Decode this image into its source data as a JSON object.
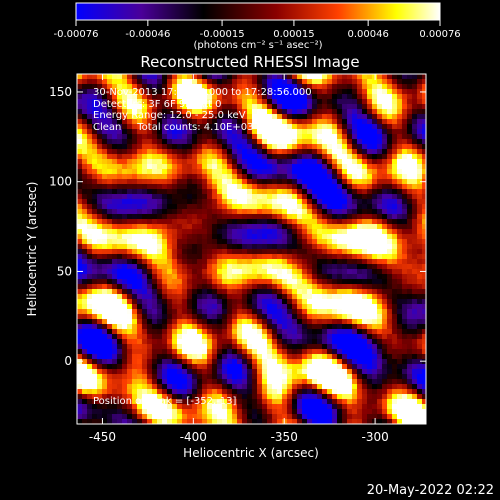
{
  "chart_data": {
    "type": "heatmap",
    "title": "Reconstructed RHESSI Image",
    "xlabel": "Heliocentric X (arcsec)",
    "ylabel": "Heliocentric Y (arcsec)",
    "xlim": [
      -464,
      -272
    ],
    "ylim": [
      -35,
      160
    ],
    "x_ticks": [
      "-450",
      "-400",
      "-350",
      "-300"
    ],
    "x_tick_values": [
      -450,
      -400,
      -350,
      -300
    ],
    "y_ticks": [
      "0",
      "50",
      "100",
      "150"
    ],
    "y_tick_values": [
      0,
      50,
      100,
      150
    ],
    "colorbar": {
      "min": -0.00076,
      "max": 0.00076,
      "tick_labels": [
        "-0.00076",
        "-0.00046",
        "-0.00015",
        "0.00015",
        "0.00046",
        "0.00076"
      ],
      "tick_values": [
        -0.00076,
        -0.00046,
        -0.00015,
        0.00015,
        0.00046,
        0.00076
      ],
      "units": "(photons cm⁻² s⁻¹ asec⁻²)",
      "colormap": [
        "#0000ff",
        "#4a0099",
        "#000000",
        "#8a0000",
        "#ff4000",
        "#ffff00",
        "#ffffff"
      ]
    },
    "annotations": {
      "time_range": "30-Nov-2013 17:22:58.000 to 17:28:56.000",
      "detectors": "Detectors: 3F 6F 9F, Att 0",
      "energy": "Energy Range: 12.0 - 25.0 keV",
      "clean": "Clean     Total counts: 4.10E+03",
      "peak": "Position of Peak = [-352,-13]"
    },
    "peak_position": [
      -352,
      -13
    ]
  },
  "footer": {
    "date": "20-May-2022 02:22"
  }
}
